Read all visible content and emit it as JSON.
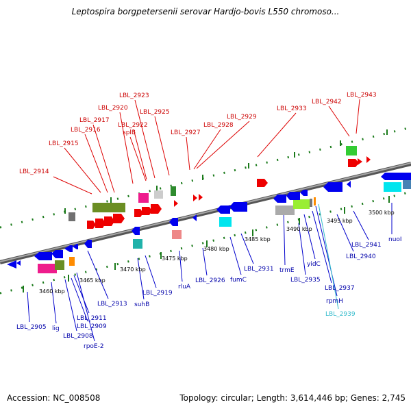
{
  "title": "Leptospira borgpetersenii serovar Hardjo-bovis L550 chromoso...",
  "footer": {
    "accession_text": "Accession: NC_008508",
    "summary_text": "Topology: circular; Length: 3,614,446 bp; Genes: 2,745"
  },
  "colors": {
    "top_label": "#cc0000",
    "bottom_label": "#0000aa",
    "special_label": "#33bbcc",
    "backbone": "#808080",
    "tick": "#1a7a1a"
  },
  "ruler_labels": [
    {
      "text": "3460 kbp"
    },
    {
      "text": "3465 kbp"
    },
    {
      "text": "3470 kbp"
    },
    {
      "text": "3475 kbp"
    },
    {
      "text": "3480 kbp"
    },
    {
      "text": "3485 kbp"
    },
    {
      "text": "3490 kbp"
    },
    {
      "text": "3495 kbp"
    },
    {
      "text": "3500 kbp"
    }
  ],
  "top_gene_labels": [
    {
      "text": "LBL_2914"
    },
    {
      "text": "LBL_2915"
    },
    {
      "text": "LBL_2916"
    },
    {
      "text": "LBL_2917"
    },
    {
      "text": "LBL_2920"
    },
    {
      "text": "splB"
    },
    {
      "text": "LBL_2922"
    },
    {
      "text": "LBL_2923"
    },
    {
      "text": "LBL_2925"
    },
    {
      "text": "LBL_2927"
    },
    {
      "text": "LBL_2928"
    },
    {
      "text": "LBL_2929"
    },
    {
      "text": "LBL_2933"
    },
    {
      "text": "LBL_2942"
    },
    {
      "text": "LBL_2943"
    }
  ],
  "bottom_gene_labels": [
    {
      "text": "LBL_2905"
    },
    {
      "text": "lig"
    },
    {
      "text": "LBL_2908"
    },
    {
      "text": "LBL_2909"
    },
    {
      "text": "LBL_2911"
    },
    {
      "text": "rpoE-2"
    },
    {
      "text": "LBL_2913"
    },
    {
      "text": "suhB"
    },
    {
      "text": "LBL_2919"
    },
    {
      "text": "rluA"
    },
    {
      "text": "LBL_2926"
    },
    {
      "text": "fumC"
    },
    {
      "text": "LBL_2931"
    },
    {
      "text": "trmE"
    },
    {
      "text": "LBL_2935"
    },
    {
      "text": "yidC"
    },
    {
      "text": "LBL_2937"
    },
    {
      "text": "rpmH"
    },
    {
      "text": "LBL_2939"
    },
    {
      "text": "LBL_2940"
    },
    {
      "text": "LBL_2941"
    },
    {
      "text": "nuoI"
    }
  ]
}
